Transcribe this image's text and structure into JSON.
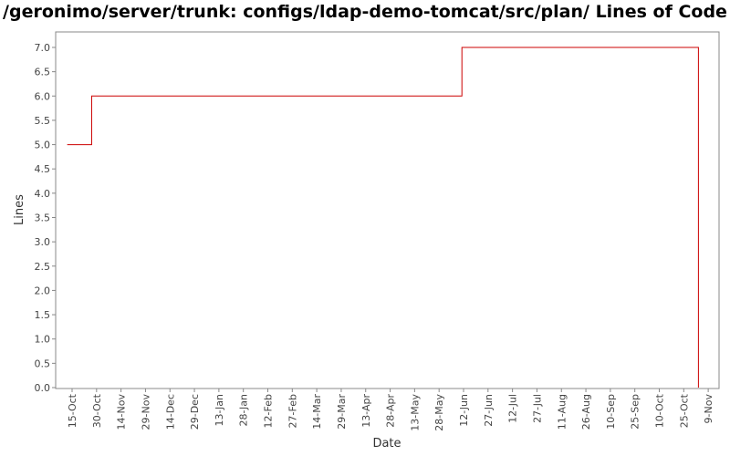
{
  "chart_data": {
    "type": "line",
    "step": true,
    "title": "/geronimo/server/trunk: configs/ldap-demo-tomcat/src/plan/ Lines of Code",
    "xlabel": "Date",
    "ylabel": "Lines",
    "ylim": [
      0.0,
      7.2
    ],
    "y_ticks": [
      "0.0",
      "0.5",
      "1.0",
      "1.5",
      "2.0",
      "2.5",
      "3.0",
      "3.5",
      "4.0",
      "4.5",
      "5.0",
      "5.5",
      "6.0",
      "6.5",
      "7.0"
    ],
    "x_ticks": [
      "15-Oct",
      "30-Oct",
      "14-Nov",
      "29-Nov",
      "14-Dec",
      "29-Dec",
      "13-Jan",
      "28-Jan",
      "12-Feb",
      "27-Feb",
      "14-Mar",
      "29-Mar",
      "13-Apr",
      "28-Apr",
      "13-May",
      "28-May",
      "12-Jun",
      "27-Jun",
      "12-Jul",
      "27-Jul",
      "11-Aug",
      "26-Aug",
      "10-Sep",
      "25-Sep",
      "10-Oct",
      "25-Oct",
      "9-Nov"
    ],
    "grid": false,
    "line_color": "#cc0000",
    "series": [
      {
        "points": [
          {
            "x": "2006-10-12",
            "y": 5.0
          },
          {
            "x": "2006-10-27",
            "y": 6.0
          },
          {
            "x": "2007-06-11",
            "y": 7.0
          },
          {
            "x": "2007-11-03",
            "y": 0.0
          }
        ]
      }
    ]
  }
}
